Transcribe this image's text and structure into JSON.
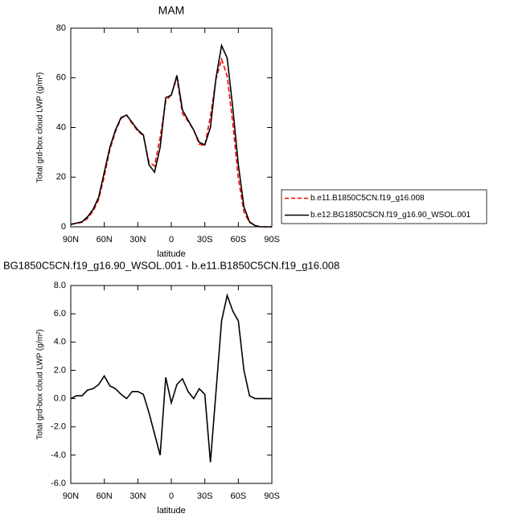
{
  "chart_data": [
    {
      "type": "line",
      "title": "MAM",
      "xlabel": "latitude",
      "ylabel": "Total grd-box cloud LWP (g/m²)",
      "x": [
        90,
        85,
        80,
        75,
        70,
        65,
        60,
        55,
        50,
        45,
        40,
        35,
        30,
        25,
        20,
        15,
        10,
        5,
        0,
        -5,
        -10,
        -15,
        -20,
        -25,
        -30,
        -35,
        -40,
        -45,
        -50,
        -55,
        -60,
        -65,
        -70,
        -75,
        -80,
        -85,
        -90
      ],
      "series": [
        {
          "name": "b.e11.B1850C5CN.f19_g16.008",
          "color": "#ff0000",
          "dashed": true,
          "values": [
            1,
            1.3,
            1.8,
            3.4,
            6.3,
            11,
            20.4,
            31.1,
            38.3,
            43.7,
            45,
            41.5,
            38.5,
            36.7,
            26,
            24.5,
            36,
            50.5,
            53.3,
            60,
            45.6,
            42.5,
            39,
            33.3,
            32.7,
            44.5,
            59.5,
            67.5,
            60.7,
            41.8,
            19.5,
            6,
            1.8,
            0.5,
            0,
            0,
            0
          ]
        },
        {
          "name": "b.e12.BG1850C5CN.f19_g16.90_WSOL.001",
          "color": "#000000",
          "dashed": false,
          "values": [
            1,
            1.5,
            2,
            4,
            7,
            12,
            22,
            32,
            39,
            44,
            45,
            42,
            39,
            37,
            25,
            22,
            32,
            52,
            53,
            61,
            47,
            43,
            39,
            34,
            33,
            40,
            60,
            73,
            68,
            48,
            25,
            8,
            2,
            0.5,
            0,
            0,
            0
          ]
        }
      ],
      "xlim": [
        90,
        -90
      ],
      "xticks": [
        {
          "value": 90,
          "label": "90N"
        },
        {
          "value": 60,
          "label": "60N"
        },
        {
          "value": 30,
          "label": "30N"
        },
        0,
        {
          "value": -30,
          "label": "30S"
        },
        {
          "value": -60,
          "label": "60S"
        },
        {
          "value": -90,
          "label": "90S"
        }
      ],
      "ylim": [
        0,
        80
      ],
      "yticks": [
        0,
        20,
        40,
        60,
        80
      ],
      "legend": "right"
    },
    {
      "type": "line",
      "title": "BG1850C5CN.f19_g16.90_WSOL.001 - b.e11.B1850C5CN.f19_g16.008",
      "xlabel": "latitude",
      "ylabel": "Total grd-box cloud LWP (g/m²)",
      "x": [
        90,
        85,
        80,
        75,
        70,
        65,
        60,
        55,
        50,
        45,
        40,
        35,
        30,
        25,
        20,
        15,
        10,
        5,
        0,
        -5,
        -10,
        -15,
        -20,
        -25,
        -30,
        -35,
        -40,
        -45,
        -50,
        -55,
        -60,
        -65,
        -70,
        -75,
        -80,
        -85,
        -90
      ],
      "values": [
        0,
        0.2,
        0.2,
        0.6,
        0.7,
        1.0,
        1.6,
        0.9,
        0.7,
        0.3,
        0.0,
        0.5,
        0.5,
        0.3,
        -1.0,
        -2.5,
        -4.0,
        1.5,
        -0.3,
        1.0,
        1.4,
        0.5,
        0,
        0.7,
        0.3,
        -4.5,
        0.5,
        5.5,
        7.3,
        6.2,
        5.5,
        2.0,
        0.2,
        0,
        0,
        0,
        0
      ],
      "color": "#000000",
      "xlim": [
        90,
        -90
      ],
      "xticks": [
        {
          "value": 90,
          "label": "90N"
        },
        {
          "value": 60,
          "label": "60N"
        },
        {
          "value": 30,
          "label": "30N"
        },
        0,
        {
          "value": -30,
          "label": "30S"
        },
        {
          "value": -60,
          "label": "60S"
        },
        {
          "value": -90,
          "label": "90S"
        }
      ],
      "ylim": [
        -6,
        8
      ],
      "yticks": [
        {
          "value": -6,
          "label": "-6.0"
        },
        {
          "value": -4,
          "label": "-4.0"
        },
        {
          "value": -2,
          "label": "-2.0"
        },
        {
          "value": 0,
          "label": "0.0"
        },
        {
          "value": 2,
          "label": "2.0"
        },
        {
          "value": 4,
          "label": "4.0"
        },
        {
          "value": 6,
          "label": "6.0"
        },
        {
          "value": 8,
          "label": "8.0"
        }
      ]
    }
  ]
}
